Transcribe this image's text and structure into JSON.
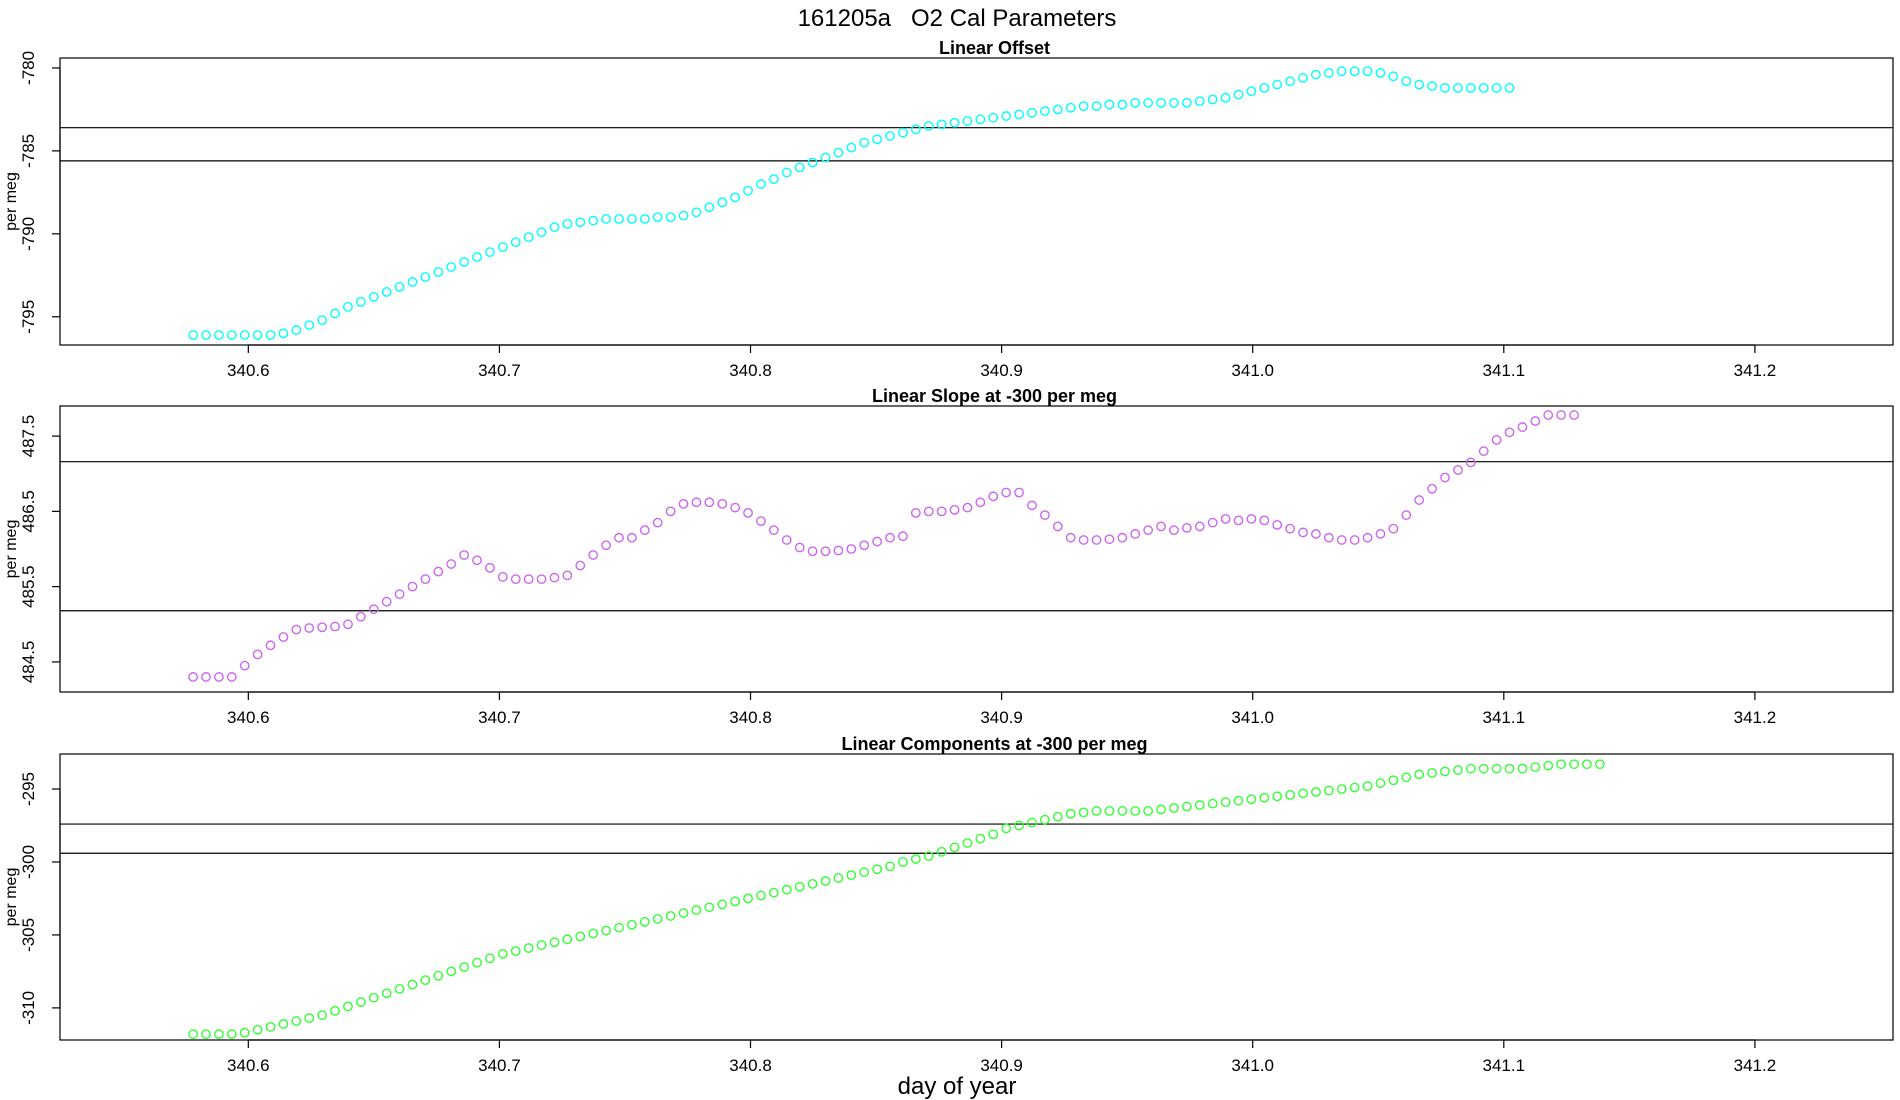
{
  "main_title": "161205a   O2 Cal Parameters",
  "xlabel": "day of year",
  "chart_data": [
    {
      "type": "scatter",
      "title": "Linear Offset",
      "ylabel": "per meg",
      "color": "#00ffff",
      "xlim": [
        340.525,
        341.255
      ],
      "ylim": [
        -796.7,
        -779.4
      ],
      "xticks": [
        340.6,
        340.7,
        340.8,
        340.9,
        341.0,
        341.1,
        341.2
      ],
      "xtick_labels": [
        "340.6",
        "340.7",
        "340.8",
        "340.9",
        "341.0",
        "341.1",
        "341.2"
      ],
      "yticks": [
        -795,
        -790,
        -785,
        -780
      ],
      "ytick_labels": [
        "-795",
        "-790",
        "-785",
        "-780"
      ],
      "hlines": [
        -783.6,
        -785.6
      ],
      "x_start": 340.578,
      "x_step": 0.00514,
      "y": [
        -796.1,
        -796.1,
        -796.1,
        -796.1,
        -796.1,
        -796.1,
        -796.1,
        -796.0,
        -795.8,
        -795.5,
        -795.2,
        -794.8,
        -794.4,
        -794.1,
        -793.8,
        -793.5,
        -793.2,
        -792.9,
        -792.6,
        -792.3,
        -792.0,
        -791.7,
        -791.4,
        -791.1,
        -790.8,
        -790.5,
        -790.2,
        -789.9,
        -789.6,
        -789.4,
        -789.3,
        -789.2,
        -789.1,
        -789.1,
        -789.1,
        -789.1,
        -789.0,
        -789.0,
        -788.9,
        -788.7,
        -788.4,
        -788.1,
        -787.8,
        -787.4,
        -787.0,
        -786.7,
        -786.3,
        -786.0,
        -785.7,
        -785.4,
        -785.1,
        -784.8,
        -784.5,
        -784.3,
        -784.1,
        -783.9,
        -783.7,
        -783.5,
        -783.4,
        -783.3,
        -783.2,
        -783.1,
        -783.0,
        -782.9,
        -782.8,
        -782.7,
        -782.6,
        -782.5,
        -782.4,
        -782.3,
        -782.3,
        -782.2,
        -782.2,
        -782.1,
        -782.1,
        -782.1,
        -782.1,
        -782.1,
        -782.0,
        -781.9,
        -781.8,
        -781.6,
        -781.4,
        -781.2,
        -781.0,
        -780.8,
        -780.6,
        -780.4,
        -780.3,
        -780.2,
        -780.2,
        -780.2,
        -780.3,
        -780.5,
        -780.8,
        -781.0,
        -781.1,
        -781.2,
        -781.2,
        -781.2,
        -781.2,
        -781.2,
        -781.2
      ]
    },
    {
      "type": "scatter",
      "title": "Linear Slope at -300 per meg",
      "ylabel": "per meg",
      "color": "#cc66ee",
      "xlim": [
        340.525,
        341.255
      ],
      "ylim": [
        484.1,
        487.9
      ],
      "xticks": [
        340.6,
        340.7,
        340.8,
        340.9,
        341.0,
        341.1,
        341.2
      ],
      "xtick_labels": [
        "340.6",
        "340.7",
        "340.8",
        "340.9",
        "341.0",
        "341.1",
        "341.2"
      ],
      "yticks": [
        484.5,
        485.5,
        486.5,
        487.5
      ],
      "ytick_labels": [
        "484.5",
        "485.5",
        "486.5",
        "487.5"
      ],
      "hlines": [
        487.16,
        485.18
      ],
      "x_start": 340.578,
      "x_step": 0.00514,
      "y": [
        484.3,
        484.3,
        484.3,
        484.3,
        484.45,
        484.6,
        484.72,
        484.83,
        484.93,
        484.95,
        484.96,
        484.97,
        485.0,
        485.1,
        485.2,
        485.3,
        485.4,
        485.5,
        485.6,
        485.7,
        485.8,
        485.92,
        485.85,
        485.75,
        485.63,
        485.6,
        485.6,
        485.6,
        485.62,
        485.65,
        485.78,
        485.92,
        486.05,
        486.15,
        486.15,
        486.25,
        486.35,
        486.5,
        486.6,
        486.62,
        486.62,
        486.6,
        486.55,
        486.48,
        486.37,
        486.25,
        486.12,
        486.02,
        485.97,
        485.97,
        485.98,
        486.0,
        486.05,
        486.1,
        486.15,
        486.17,
        486.48,
        486.5,
        486.5,
        486.52,
        486.55,
        486.62,
        486.7,
        486.75,
        486.75,
        486.58,
        486.45,
        486.3,
        486.15,
        486.12,
        486.12,
        486.13,
        486.15,
        486.2,
        486.25,
        486.3,
        486.25,
        486.28,
        486.3,
        486.35,
        486.4,
        486.38,
        486.4,
        486.38,
        486.32,
        486.27,
        486.22,
        486.2,
        486.15,
        486.12,
        486.12,
        486.15,
        486.2,
        486.27,
        486.45,
        486.65,
        486.8,
        486.95,
        487.05,
        487.15,
        487.3,
        487.45,
        487.55,
        487.62,
        487.7,
        487.78,
        487.78,
        487.78
      ]
    },
    {
      "type": "scatter",
      "title": "Linear Components at -300 per meg",
      "ylabel": "per meg",
      "color": "#33ff33",
      "xlim": [
        340.525,
        341.255
      ],
      "ylim": [
        -312.2,
        -292.6
      ],
      "xticks": [
        340.6,
        340.7,
        340.8,
        340.9,
        341.0,
        341.1,
        341.2
      ],
      "xtick_labels": [
        "340.6",
        "340.7",
        "340.8",
        "340.9",
        "341.0",
        "341.1",
        "341.2"
      ],
      "yticks": [
        -310,
        -305,
        -300,
        -295
      ],
      "ytick_labels": [
        "-310",
        "-305",
        "-300",
        "-295"
      ],
      "hlines": [
        -297.4,
        -299.4
      ],
      "x_start": 340.578,
      "x_step": 0.00514,
      "y": [
        -311.8,
        -311.8,
        -311.8,
        -311.8,
        -311.7,
        -311.5,
        -311.3,
        -311.1,
        -310.9,
        -310.7,
        -310.5,
        -310.2,
        -309.9,
        -309.6,
        -309.3,
        -309.0,
        -308.7,
        -308.4,
        -308.1,
        -307.8,
        -307.5,
        -307.2,
        -306.9,
        -306.6,
        -306.3,
        -306.1,
        -305.9,
        -305.7,
        -305.5,
        -305.3,
        -305.1,
        -304.9,
        -304.7,
        -304.5,
        -304.3,
        -304.1,
        -303.9,
        -303.7,
        -303.5,
        -303.3,
        -303.1,
        -302.9,
        -302.7,
        -302.5,
        -302.3,
        -302.1,
        -301.9,
        -301.7,
        -301.5,
        -301.3,
        -301.1,
        -300.9,
        -300.7,
        -300.5,
        -300.3,
        -300.0,
        -299.8,
        -299.6,
        -299.3,
        -299.0,
        -298.7,
        -298.4,
        -298.1,
        -297.7,
        -297.5,
        -297.3,
        -297.1,
        -296.9,
        -296.7,
        -296.6,
        -296.5,
        -296.5,
        -296.5,
        -296.5,
        -296.5,
        -296.4,
        -296.3,
        -296.2,
        -296.1,
        -296.0,
        -295.9,
        -295.8,
        -295.7,
        -295.6,
        -295.5,
        -295.4,
        -295.3,
        -295.2,
        -295.1,
        -295.0,
        -294.9,
        -294.8,
        -294.6,
        -294.4,
        -294.2,
        -294.0,
        -293.9,
        -293.8,
        -293.7,
        -293.6,
        -293.6,
        -293.6,
        -293.6,
        -293.6,
        -293.5,
        -293.4,
        -293.3,
        -293.3,
        -293.3,
        -293.3
      ]
    }
  ]
}
